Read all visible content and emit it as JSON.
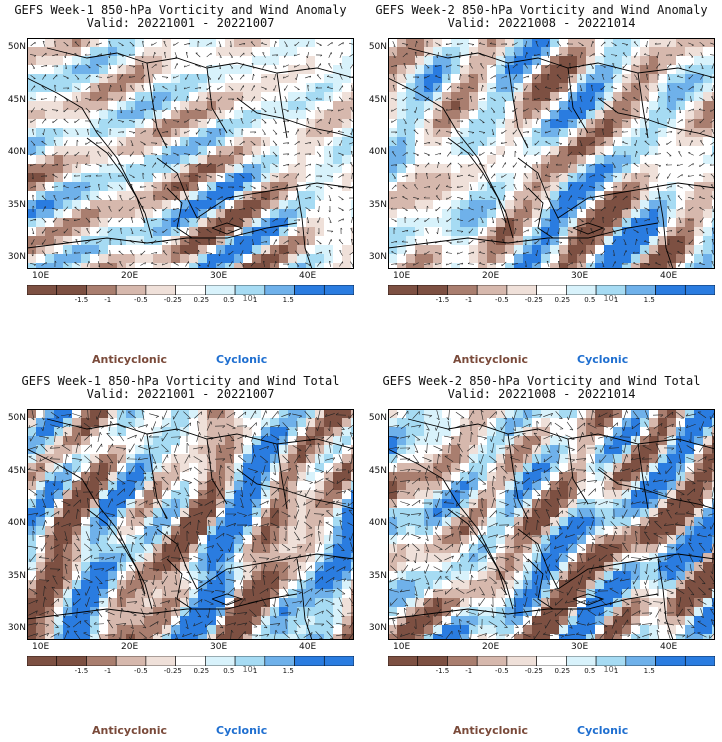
{
  "colors": {
    "anti_dark": "#7d5042",
    "anti_mid": "#a97e6f",
    "anti_light": "#d6b8ad",
    "anti_pale": "#efe0d9",
    "neutral": "#ffffff",
    "cyc_pale": "#d8f2fb",
    "cyc_light": "#a6dbf3",
    "cyc_mid": "#6fb1ea",
    "cyc_dark": "#2a7ce0",
    "legend_anti": "#7a4a3a",
    "legend_cyc": "#1f6fd0"
  },
  "colorbar": {
    "labels": [
      "-1.5",
      "-1",
      "-0.5",
      "-0.25",
      "0.25",
      "0.5",
      "1",
      "1.5"
    ],
    "unit": "10¹"
  },
  "legend": {
    "anticyclonic": "Anticyclonic",
    "cyclonic": "Cyclonic"
  },
  "axes": {
    "lat_labels": [
      "50N",
      "45N",
      "40N",
      "35N",
      "30N"
    ],
    "lon_labels": [
      "10E",
      "20E",
      "30E",
      "40E"
    ]
  },
  "panels": [
    {
      "id": "week1-anomaly",
      "title": "GEFS Week-1 850-hPa Vorticity and Wind Anomaly",
      "valid": "Valid: 20221001 - 20221007"
    },
    {
      "id": "week2-anomaly",
      "title": "GEFS Week-2 850-hPa Vorticity and Wind Anomaly",
      "valid": "Valid: 20221008 - 20221014"
    },
    {
      "id": "week1-total",
      "title": "GEFS Week-1 850-hPa Vorticity and Wind Total",
      "valid": "Valid: 20221001 - 20221007"
    },
    {
      "id": "week2-total",
      "title": "GEFS Week-2 850-hPa Vorticity and Wind Total",
      "valid": "Valid: 20221008 - 20221014"
    }
  ]
}
